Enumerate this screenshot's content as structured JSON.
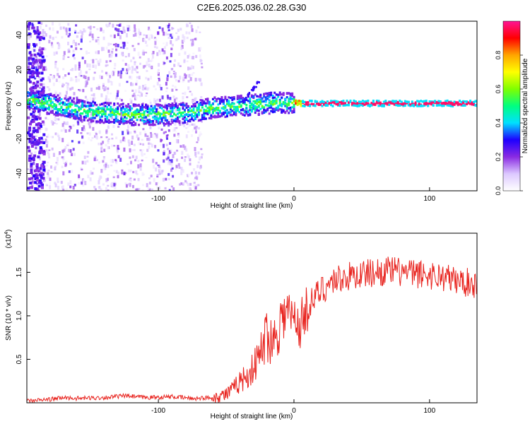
{
  "title": "C2E6.2025.036.02.28.G30",
  "chart_data": [
    {
      "type": "heatmap",
      "xlabel": "Height of straight line (km)",
      "ylabel": "Frequency (Hz)",
      "xlim": [
        -197,
        135
      ],
      "ylim": [
        -50,
        48
      ],
      "xticks": [
        -100,
        0,
        100
      ],
      "xtick_labels": [
        "-100",
        "0",
        "100"
      ],
      "yticks": [
        -40,
        -20,
        0,
        20,
        40
      ],
      "ytick_labels": [
        "-40",
        "-20",
        "0",
        "20",
        "40"
      ],
      "colorbar": {
        "label": "Normalized spectral amplitude",
        "range": [
          0.0,
          1.0
        ],
        "ticks": [
          0.0,
          0.2,
          0.4,
          0.6,
          0.8
        ],
        "tick_labels": [
          "0.0",
          "0.2",
          "0.4",
          "0.6",
          "0.8"
        ],
        "colors": [
          "#ffffff",
          "#dcc8ff",
          "#8a2be2",
          "#1e00ff",
          "#00e0ff",
          "#00ff80",
          "#7fff00",
          "#ffff00",
          "#ffa500",
          "#ff0000",
          "#ff1493"
        ]
      },
      "ridge": {
        "x": [
          -197,
          -180,
          -160,
          -140,
          -120,
          -100,
          -80,
          -60,
          -40,
          -25,
          -15,
          -5,
          5,
          20,
          135
        ],
        "frequency": [
          3,
          0,
          -3,
          -5,
          -6,
          -6,
          -5,
          -2,
          -1,
          0,
          1,
          1,
          0.5,
          0.5,
          0.5
        ]
      }
    },
    {
      "type": "line",
      "xlabel": "Height of straight line (km)",
      "ylabel": "SNR (10 * v/v)",
      "y_multiplier": "(x10",
      "y_multiplier_exp": "4",
      "y_multiplier_close": ")",
      "xlim": [
        -197,
        135
      ],
      "ylim": [
        0,
        1.95
      ],
      "xticks": [
        -100,
        0,
        100
      ],
      "xtick_labels": [
        "-100",
        "0",
        "100"
      ],
      "yticks": [
        0.5,
        1.0,
        1.5
      ],
      "ytick_labels": [
        "0.5",
        "1.0",
        "1.5"
      ],
      "color": "#e8231e",
      "x": [
        -197,
        -180,
        -170,
        -160,
        -140,
        -125,
        -110,
        -90,
        -75,
        -60,
        -50,
        -45,
        -40,
        -35,
        -30,
        -25,
        -20,
        -15,
        -12,
        -8,
        -5,
        0,
        5,
        10,
        15,
        20,
        25,
        30,
        40,
        50,
        60,
        70,
        80,
        90,
        100,
        110,
        120,
        130,
        135
      ],
      "y": [
        0.02,
        0.04,
        0.06,
        0.05,
        0.06,
        0.08,
        0.06,
        0.07,
        0.05,
        0.06,
        0.1,
        0.15,
        0.25,
        0.3,
        0.4,
        0.55,
        0.8,
        0.7,
        0.9,
        1.0,
        1.05,
        0.95,
        0.9,
        1.1,
        1.2,
        1.3,
        1.35,
        1.42,
        1.45,
        1.48,
        1.5,
        1.52,
        1.5,
        1.48,
        1.47,
        1.45,
        1.4,
        1.38,
        1.35
      ]
    }
  ]
}
